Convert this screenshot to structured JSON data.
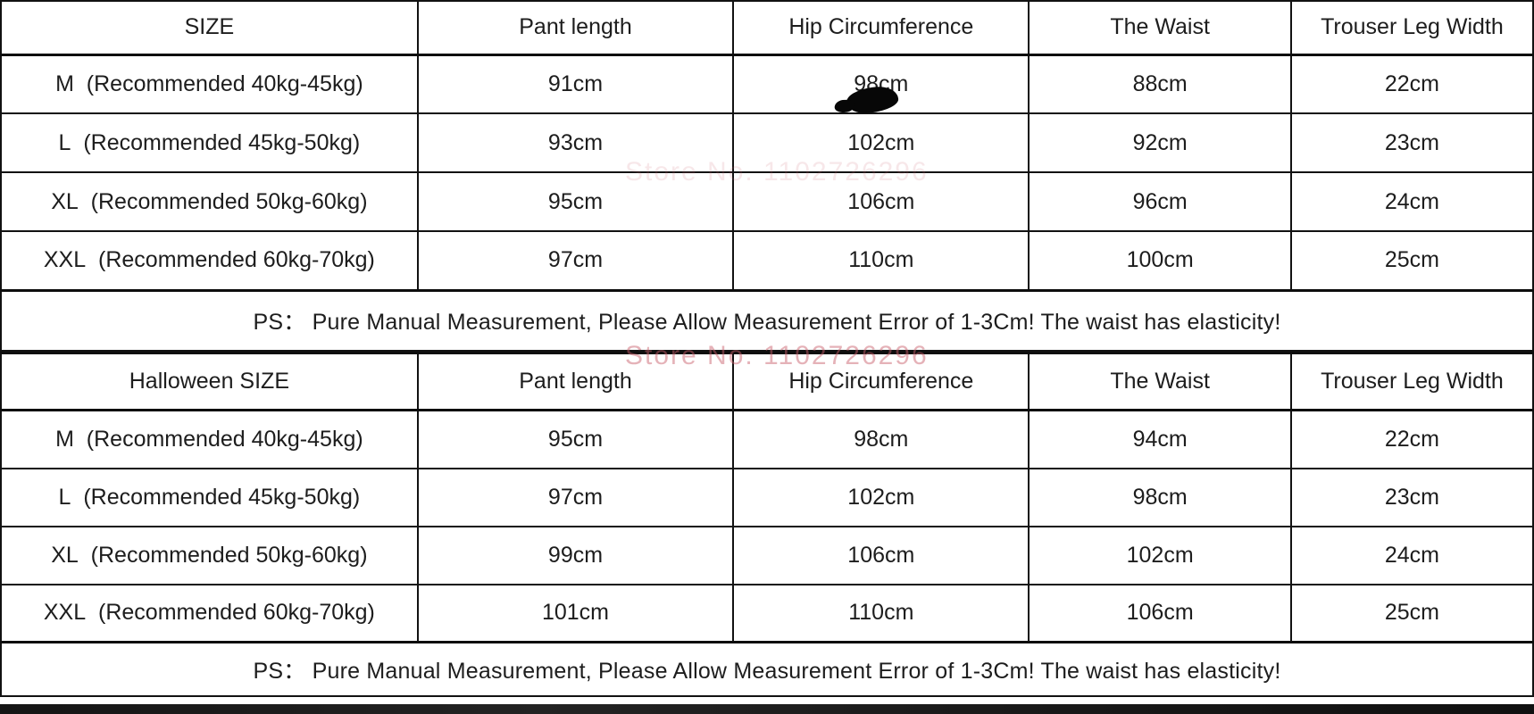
{
  "page": {
    "background": "#ffffff",
    "text_color": "#1d1d1d",
    "border_color": "#121212",
    "bottom_bar_color": "#181818"
  },
  "watermark": {
    "text": "Store No. 1102726296",
    "color": "#c95f6a"
  },
  "tables": [
    {
      "name": "regular-size-table",
      "headers": [
        "SIZE",
        "Pant length",
        "Hip Circumference",
        "The Waist",
        "Trouser Leg Width"
      ],
      "rows": [
        [
          "M  (Recommended 40kg-45kg)",
          "91cm",
          "98cm",
          "88cm",
          "22cm"
        ],
        [
          "L  (Recommended 45kg-50kg)",
          "93cm",
          "102cm",
          "92cm",
          "23cm"
        ],
        [
          "XL  (Recommended 50kg-60kg)",
          "95cm",
          "106cm",
          "96cm",
          "24cm"
        ],
        [
          "XXL  (Recommended 60kg-70kg)",
          "97cm",
          "110cm",
          "100cm",
          "25cm"
        ]
      ],
      "note": "PS： Pure Manual Measurement, Please Allow Measurement Error of 1-3Cm! The waist has elasticity!"
    },
    {
      "name": "halloween-size-table",
      "headers": [
        "Halloween SIZE",
        "Pant length",
        "Hip Circumference",
        "The Waist",
        "Trouser Leg Width"
      ],
      "rows": [
        [
          "M  (Recommended 40kg-45kg)",
          "95cm",
          "98cm",
          "94cm",
          "22cm"
        ],
        [
          "L  (Recommended 45kg-50kg)",
          "97cm",
          "102cm",
          "98cm",
          "23cm"
        ],
        [
          "XL  (Recommended 50kg-60kg)",
          "99cm",
          "106cm",
          "102cm",
          "24cm"
        ],
        [
          "XXL  (Recommended 60kg-70kg)",
          "101cm",
          "110cm",
          "106cm",
          "25cm"
        ]
      ],
      "note": "PS： Pure Manual Measurement, Please Allow Measurement Error of 1-3Cm! The waist has elasticity!"
    }
  ]
}
